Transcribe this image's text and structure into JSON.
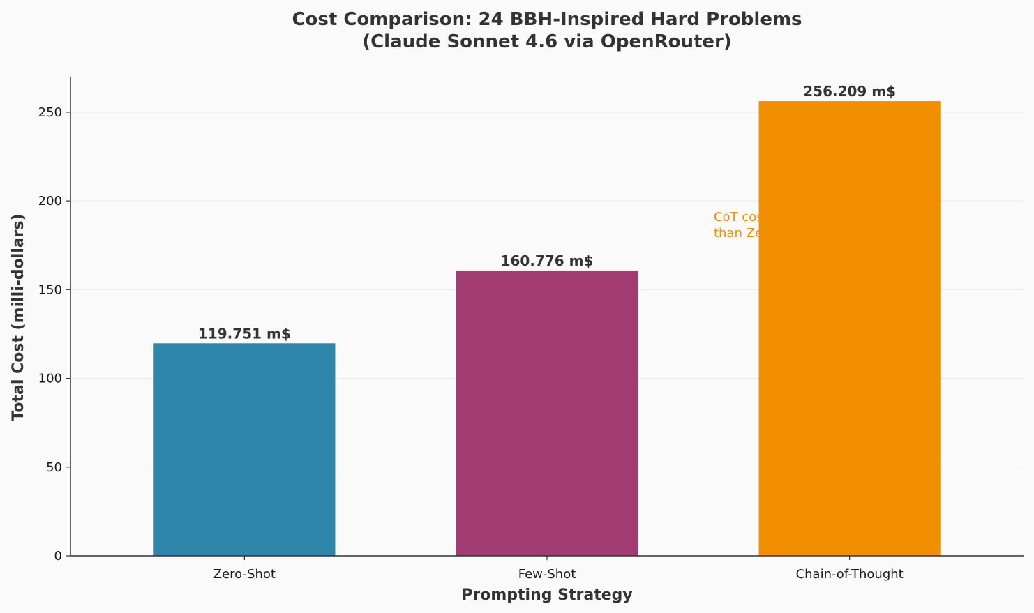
{
  "chart_data": {
    "type": "bar",
    "title_line1": "Cost Comparison: 24 BBH-Inspired Hard Problems",
    "title_line2": "(Claude Sonnet 4.6 via OpenRouter)",
    "xlabel": "Prompting Strategy",
    "ylabel": "Total Cost (milli-dollars)",
    "categories": [
      "Zero-Shot",
      "Few-Shot",
      "Chain-of-Thought"
    ],
    "values": [
      119.751,
      160.776,
      256.209
    ],
    "data_labels": [
      "119.751 m$",
      "160.776 m$",
      "256.209 m$"
    ],
    "colors": [
      "#2e86ab",
      "#a23b72",
      "#f18f01"
    ],
    "ylim": [
      0,
      270
    ],
    "yticks": [
      0,
      50,
      100,
      150,
      200,
      250
    ],
    "grid": "horizontal",
    "annotation": {
      "line1": "CoT costs",
      "line2": "than Zero",
      "color": "#f18f01"
    }
  }
}
